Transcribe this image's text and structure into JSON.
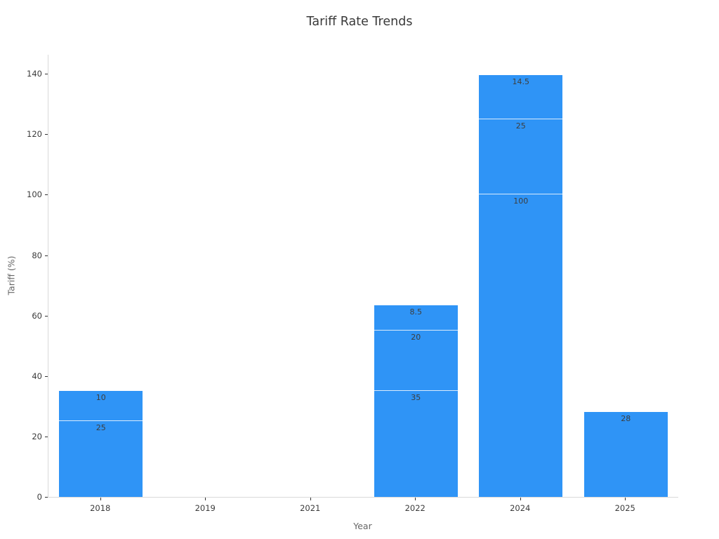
{
  "chart_data": {
    "type": "bar",
    "stacked": true,
    "title": "Tariff Rate Trends",
    "xlabel": "Year",
    "ylabel": "Tariff (%)",
    "categories": [
      "2018",
      "2019",
      "2021",
      "2022",
      "2024",
      "2025"
    ],
    "bars": [
      {
        "category": "2018",
        "segments": [
          25,
          10
        ],
        "total": 35
      },
      {
        "category": "2019",
        "segments": [],
        "total": 0
      },
      {
        "category": "2021",
        "segments": [],
        "total": 0
      },
      {
        "category": "2022",
        "segments": [
          35,
          20,
          8.5
        ],
        "total": 63.5
      },
      {
        "category": "2024",
        "segments": [
          100,
          25,
          14.5
        ],
        "total": 139.5
      },
      {
        "category": "2025",
        "segments": [
          28
        ],
        "total": 28
      }
    ],
    "yticks": [
      0,
      20,
      40,
      60,
      80,
      100,
      120,
      140
    ],
    "ylim": [
      0,
      146.3
    ],
    "grid": false,
    "legend": "none",
    "bar_color": "#2f94f6",
    "segment_divider_color": "#d9ebfc",
    "axis_line_color": "#d9d9d9",
    "tick_label_color": "#3b3b3b",
    "axis_title_color": "#666666",
    "title_color": "#3a3a3a"
  }
}
